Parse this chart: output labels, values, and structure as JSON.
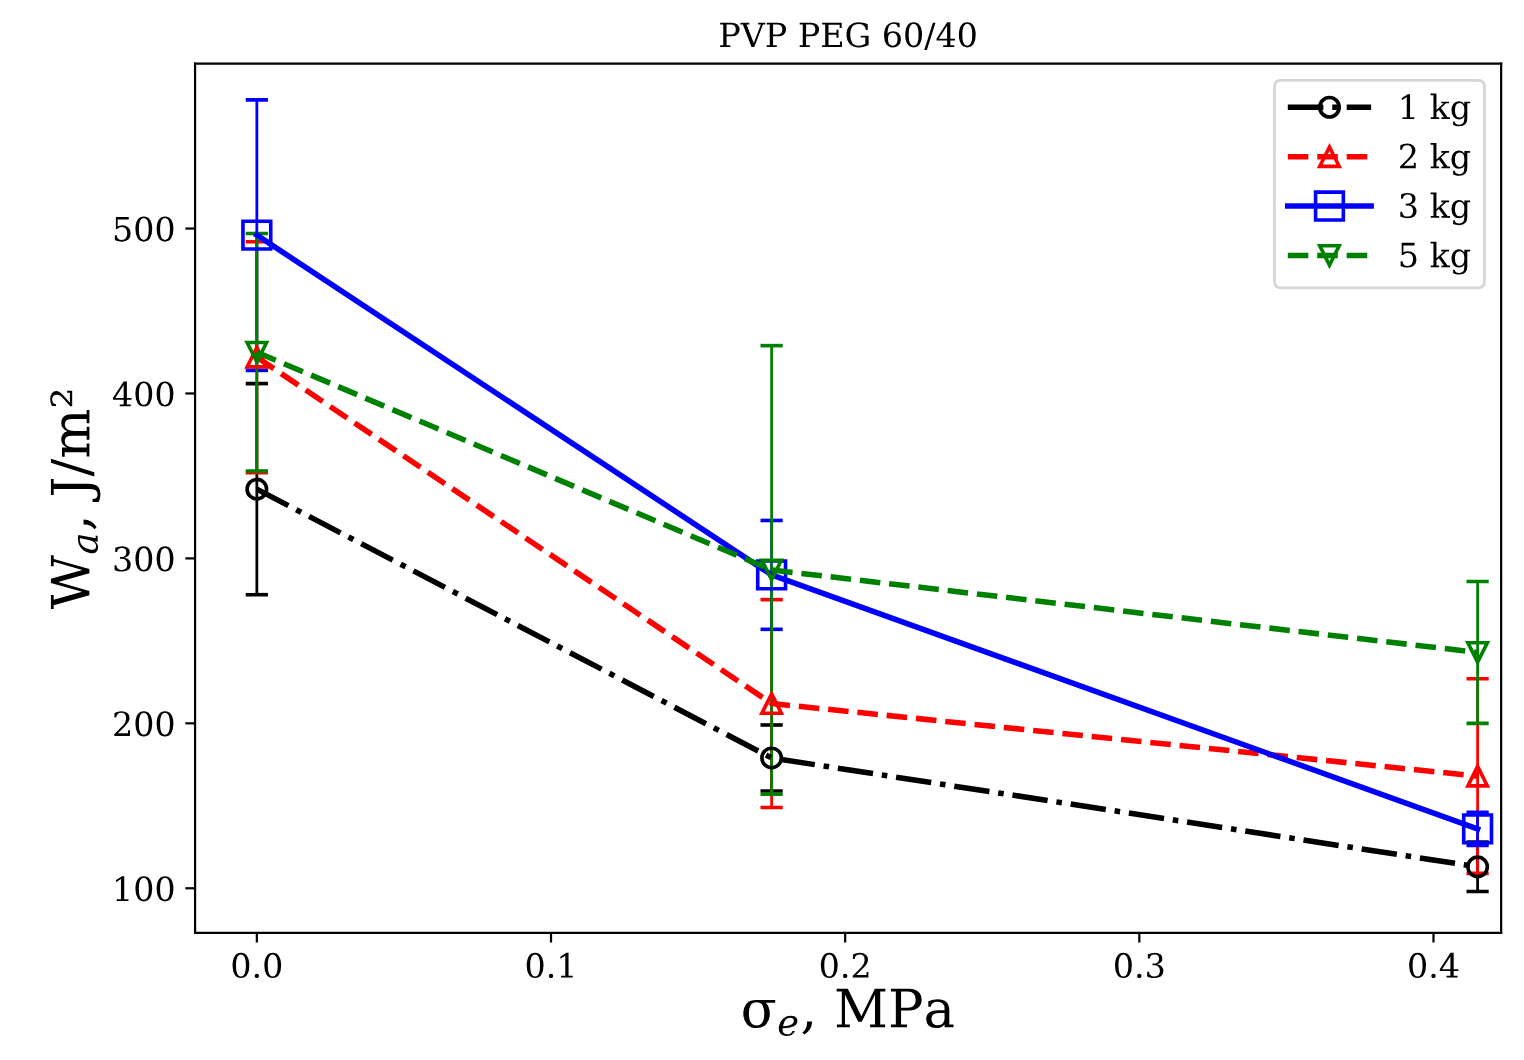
{
  "chart_data": {
    "type": "line",
    "title": "PVP PEG 60/40",
    "xlabel": "σ$_{e}$, MPa",
    "ylabel": "W$_{a}$, J/m²",
    "x": [
      0,
      0.175,
      0.415
    ],
    "series": [
      {
        "name": "1 kg",
        "color": "#000000",
        "marker": "circle",
        "line_style": "dashdot",
        "values": [
          342,
          179,
          113
        ],
        "errors": [
          64,
          20,
          15
        ]
      },
      {
        "name": "2 kg",
        "color": "#ff0000",
        "marker": "triangle",
        "line_style": "dashed",
        "values": [
          422,
          212,
          168
        ],
        "errors": [
          70,
          63,
          59
        ]
      },
      {
        "name": "3 kg",
        "color": "#0000ff",
        "marker": "square",
        "line_style": "solid",
        "values": [
          496,
          290,
          136
        ],
        "errors": [
          82,
          33,
          10
        ]
      },
      {
        "name": "5 kg",
        "color": "#008000",
        "marker": "triangle_down",
        "line_style": "dashed",
        "values": [
          425,
          293,
          243
        ],
        "errors": [
          72,
          136,
          43
        ]
      }
    ],
    "xlim": [
      -0.021,
      0.423
    ],
    "ylim": [
      73,
      600
    ],
    "xticks": [
      {
        "value": 0,
        "label": "0.0"
      },
      0.1,
      0.2,
      0.3,
      0.4
    ],
    "yticks": [
      100,
      200,
      300,
      400,
      500
    ],
    "grid": false,
    "legend": "top right"
  }
}
